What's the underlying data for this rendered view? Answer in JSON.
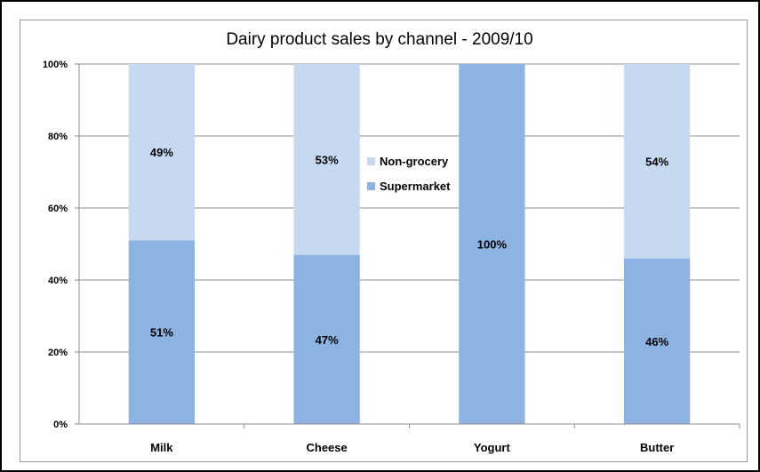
{
  "chart_data": {
    "type": "bar",
    "stacked": true,
    "title": "Dairy product sales by channel - 2009/10",
    "xlabel": "",
    "ylabel": "",
    "categories": [
      "Milk",
      "Cheese",
      "Yogurt",
      "Butter"
    ],
    "series": [
      {
        "name": "Supermarket",
        "values": [
          51,
          47,
          100,
          46
        ],
        "labels": [
          "51%",
          "47%",
          "100%",
          "46%"
        ],
        "color": "#8db3e2"
      },
      {
        "name": "Non-grocery",
        "values": [
          49,
          53,
          0,
          54
        ],
        "labels": [
          "49%",
          "53%",
          "",
          "54%"
        ],
        "color": "#c6d9f1"
      }
    ],
    "ylim": [
      0,
      100
    ],
    "yticks": [
      "0%",
      "20%",
      "40%",
      "60%",
      "80%",
      "100%"
    ],
    "grid": true,
    "legend_position": "center",
    "legend_order": [
      "Non-grocery",
      "Supermarket"
    ]
  }
}
